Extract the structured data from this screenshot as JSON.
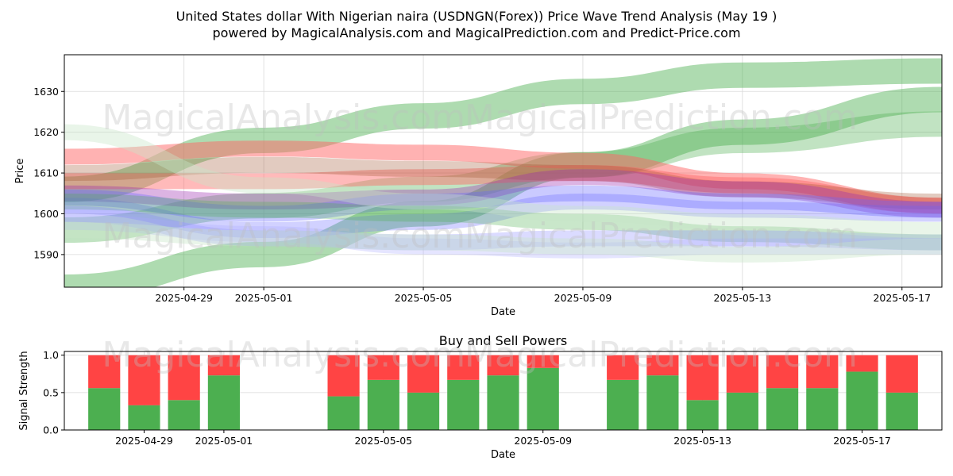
{
  "title_line1": "United States dollar With Nigerian naira (USDNGN(Forex)) Price Wave Trend Analysis (May 19 )",
  "title_line2": "powered by MagicalAnalysis.com and MagicalPrediction.com and Predict-Price.com",
  "watermarks": [
    "MagicalAnalysis.com",
    "MagicalPrediction.com"
  ],
  "chart_data": [
    {
      "type": "area",
      "name": "price-wave-trend",
      "xlabel": "Date",
      "ylabel": "Price",
      "xlim": [
        "2025-04-26",
        "2025-05-18"
      ],
      "ylim": [
        1582,
        1639
      ],
      "xticks": [
        "2025-04-29",
        "2025-05-01",
        "2025-05-05",
        "2025-05-09",
        "2025-05-13",
        "2025-05-17"
      ],
      "yticks": [
        1590,
        1600,
        1610,
        1620,
        1630
      ],
      "grid": true,
      "bands": [
        {
          "color": "#4caf50",
          "alpha": 0.45,
          "x": [
            "2025-04-26",
            "2025-05-01",
            "2025-05-05",
            "2025-05-09",
            "2025-05-13",
            "2025-05-18"
          ],
          "y": [
            1582,
            1590,
            1600,
            1612,
            1620,
            1628
          ]
        },
        {
          "color": "#4caf50",
          "alpha": 0.45,
          "x": [
            "2025-04-26",
            "2025-05-01",
            "2025-05-05",
            "2025-05-09",
            "2025-05-13",
            "2025-05-18"
          ],
          "y": [
            1606,
            1618,
            1624,
            1630,
            1634,
            1635
          ]
        },
        {
          "color": "#4caf50",
          "alpha": 0.35,
          "x": [
            "2025-04-26",
            "2025-05-01",
            "2025-05-05",
            "2025-05-09",
            "2025-05-13",
            "2025-05-18"
          ],
          "y": [
            1596,
            1602,
            1606,
            1612,
            1618,
            1622
          ]
        },
        {
          "color": "#ff6666",
          "alpha": 0.5,
          "x": [
            "2025-04-26",
            "2025-05-01",
            "2025-05-05",
            "2025-05-09",
            "2025-05-13",
            "2025-05-18"
          ],
          "y": [
            1614,
            1616,
            1615,
            1613,
            1608,
            1602
          ]
        },
        {
          "color": "#ff6666",
          "alpha": 0.45,
          "x": [
            "2025-04-26",
            "2025-05-01",
            "2025-05-05",
            "2025-05-09",
            "2025-05-13",
            "2025-05-18"
          ],
          "y": [
            1608,
            1608,
            1609,
            1610,
            1607,
            1602
          ]
        },
        {
          "color": "#a0522d",
          "alpha": 0.3,
          "x": [
            "2025-04-26",
            "2025-05-01",
            "2025-05-05",
            "2025-05-09",
            "2025-05-13",
            "2025-05-18"
          ],
          "y": [
            1610,
            1612,
            1611,
            1610,
            1606,
            1603
          ]
        },
        {
          "color": "#9c27b0",
          "alpha": 0.35,
          "x": [
            "2025-04-26",
            "2025-05-01",
            "2025-05-05",
            "2025-05-09",
            "2025-05-13",
            "2025-05-18"
          ],
          "y": [
            1605,
            1603,
            1604,
            1609,
            1606,
            1601
          ]
        },
        {
          "color": "#6666ff",
          "alpha": 0.35,
          "x": [
            "2025-04-26",
            "2025-05-01",
            "2025-05-05",
            "2025-05-09",
            "2025-05-13",
            "2025-05-18"
          ],
          "y": [
            1604,
            1600,
            1603,
            1605,
            1603,
            1601
          ]
        },
        {
          "color": "#6666ff",
          "alpha": 0.3,
          "x": [
            "2025-04-26",
            "2025-05-01",
            "2025-05-05",
            "2025-05-09",
            "2025-05-13",
            "2025-05-18"
          ],
          "y": [
            1602,
            1596,
            1598,
            1603,
            1601,
            1600
          ]
        },
        {
          "color": "#4caf50",
          "alpha": 0.3,
          "x": [
            "2025-04-26",
            "2025-05-01",
            "2025-05-05",
            "2025-05-09",
            "2025-05-13",
            "2025-05-18"
          ],
          "y": [
            1603,
            1601,
            1600,
            1598,
            1595,
            1593
          ]
        },
        {
          "color": "#8888ff",
          "alpha": 0.3,
          "x": [
            "2025-04-26",
            "2025-05-01",
            "2025-05-05",
            "2025-05-09",
            "2025-05-13",
            "2025-05-18"
          ],
          "y": [
            1600,
            1594,
            1593,
            1594,
            1594,
            1593
          ]
        },
        {
          "color": "#aaaaff",
          "alpha": 0.3,
          "x": [
            "2025-04-26",
            "2025-05-01",
            "2025-05-05",
            "2025-05-09",
            "2025-05-13",
            "2025-05-18"
          ],
          "y": [
            1598,
            1595,
            1592,
            1591,
            1592,
            1592
          ]
        },
        {
          "color": "#c8e6c9",
          "alpha": 0.4,
          "x": [
            "2025-04-26",
            "2025-05-01",
            "2025-05-05",
            "2025-05-09",
            "2025-05-13",
            "2025-05-18"
          ],
          "y": [
            1596,
            1594,
            1593,
            1592,
            1590,
            1592
          ]
        },
        {
          "color": "#c8e6c9",
          "alpha": 0.4,
          "x": [
            "2025-04-26",
            "2025-05-01",
            "2025-05-05",
            "2025-05-09",
            "2025-05-13",
            "2025-05-18"
          ],
          "y": [
            1620,
            1607,
            1603,
            1600,
            1598,
            1596
          ]
        }
      ]
    },
    {
      "type": "bar",
      "name": "buy-sell-powers",
      "title": "Buy and Sell Powers",
      "xlabel": "Date",
      "ylabel": "Signal Strength",
      "xlim": [
        "2025-04-27",
        "2025-05-19"
      ],
      "ylim": [
        0,
        1.05
      ],
      "xticks": [
        "2025-04-29",
        "2025-05-01",
        "2025-05-05",
        "2025-05-09",
        "2025-05-13",
        "2025-05-17"
      ],
      "yticks": [
        0.0,
        0.5,
        1.0
      ],
      "grid": true,
      "categories": [
        "2025-04-28",
        "2025-04-29",
        "2025-04-30",
        "2025-05-01",
        "2025-05-04",
        "2025-05-05",
        "2025-05-06",
        "2025-05-07",
        "2025-05-08",
        "2025-05-09",
        "2025-05-11",
        "2025-05-12",
        "2025-05-13",
        "2025-05-14",
        "2025-05-15",
        "2025-05-16",
        "2025-05-17",
        "2025-05-18"
      ],
      "series": [
        {
          "color": "#4caf50",
          "values": [
            0.56,
            0.33,
            0.4,
            0.73,
            0.45,
            0.67,
            0.5,
            0.67,
            0.73,
            0.83,
            0.67,
            0.73,
            0.4,
            0.5,
            0.56,
            0.56,
            0.78,
            0.5
          ]
        },
        {
          "color": "#ff4444",
          "values": [
            0.44,
            0.67,
            0.6,
            0.27,
            0.55,
            0.33,
            0.5,
            0.33,
            0.27,
            0.17,
            0.33,
            0.27,
            0.6,
            0.5,
            0.44,
            0.44,
            0.22,
            0.5
          ]
        }
      ]
    }
  ]
}
